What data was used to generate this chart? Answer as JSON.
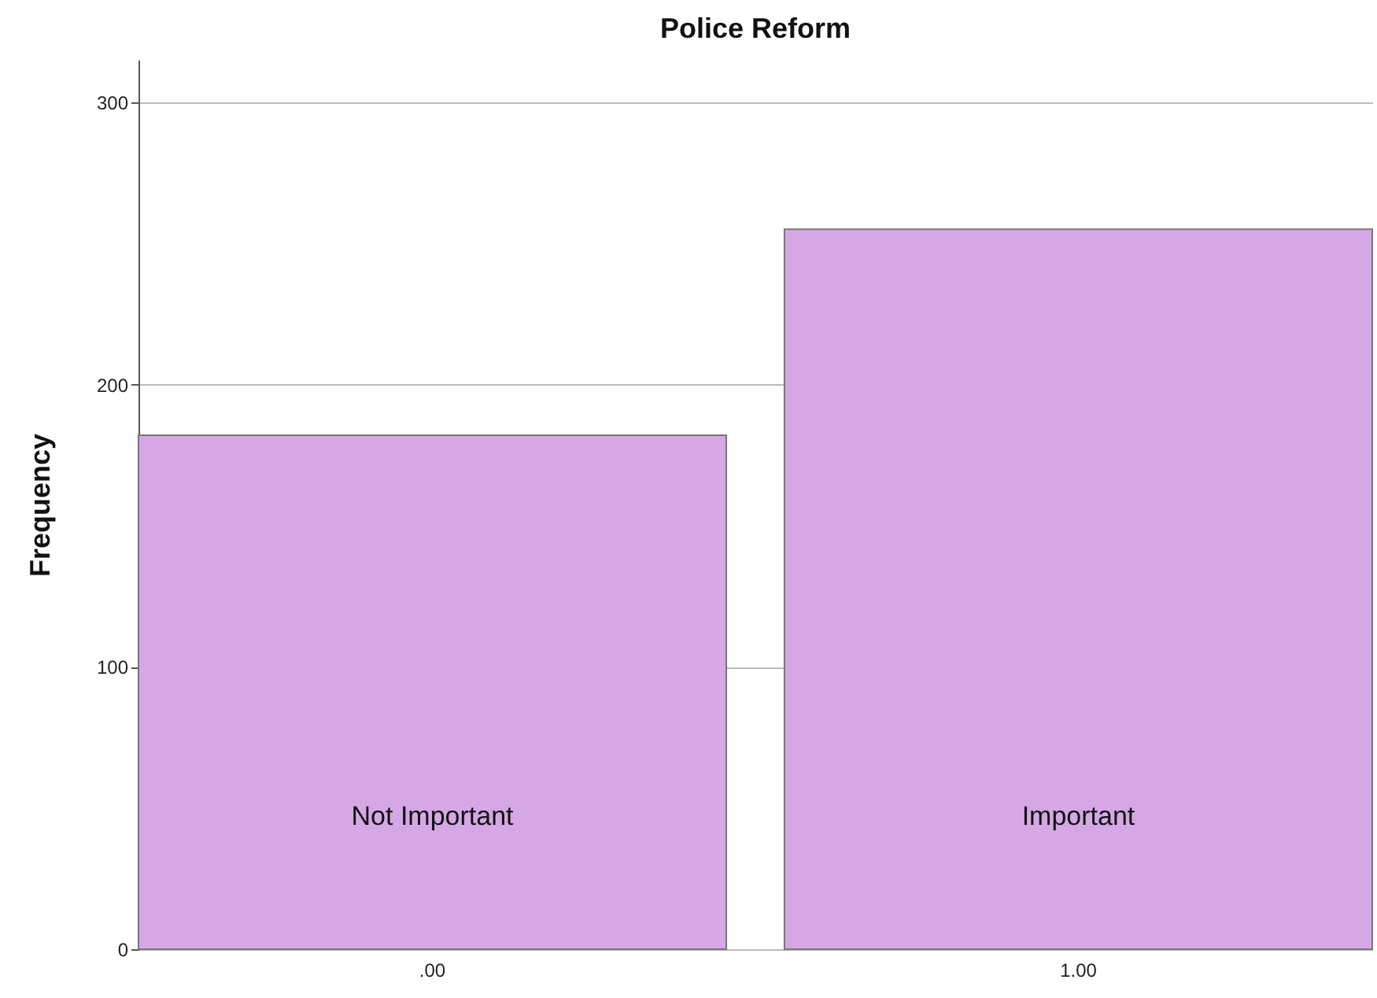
{
  "chart_data": {
    "type": "bar",
    "title": "Police Reform",
    "ylabel": "Frequency",
    "categories": [
      ".00",
      "1.00"
    ],
    "values": [
      182,
      255
    ],
    "color": "#d5a8e5",
    "ylim": [
      0,
      315
    ],
    "yticks": [
      0,
      100,
      200,
      300
    ],
    "grid": "y",
    "annotations": [
      "Not Important",
      "Important"
    ]
  }
}
